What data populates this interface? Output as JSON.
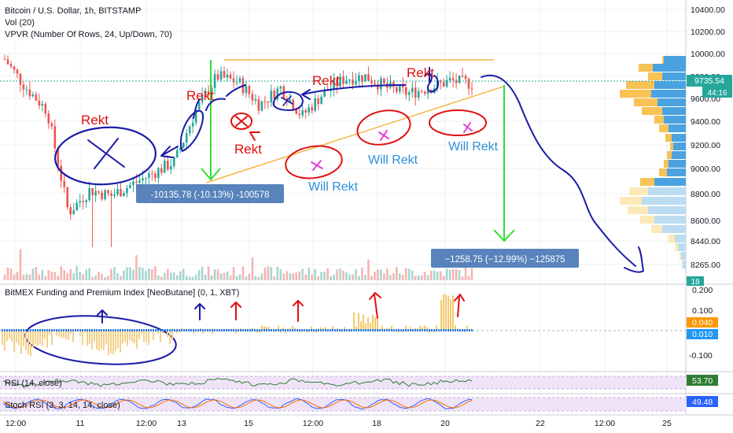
{
  "header": {
    "symbol": "Bitcoin / U.S. Dollar, 1h, BITSTAMP",
    "vol": "Vol (20)",
    "vpvr": "VPVR (Number Of Rows, 24, Up/Down, 70)"
  },
  "price_axis": {
    "ticks": [
      "10400.00",
      "10200.00",
      "10000.00",
      "9800.00",
      "9600.00",
      "9400.00",
      "9200.00",
      "9000.00",
      "8800.00",
      "8600.00",
      "8440.00",
      "8265.00"
    ],
    "last_price": "9735.54",
    "countdown": "44:16",
    "vol_badge": "18"
  },
  "time_axis": {
    "ticks": [
      "12:00",
      "11",
      "12:00",
      "13",
      "15",
      "12:00",
      "18",
      "20",
      "22",
      "12:00",
      "25"
    ]
  },
  "indicators": {
    "bitmex": {
      "label": "BitMEX Funding and Premium Index [NeoButane] (0, 1, XBT)",
      "ticks": [
        "0.200",
        "0.100",
        "0.040",
        "0.010",
        "-0.100"
      ],
      "badge1": "0.040",
      "badge2": "0.010"
    },
    "rsi": {
      "label": "RSI (14, close)",
      "value": "53.70"
    },
    "stoch": {
      "label": "Stoch RSI (3, 3, 14, 14, close)",
      "value": "49.48"
    }
  },
  "annotations": {
    "measure_left": "-10135.78 (-10.13%) -100578",
    "measure_right": "−1258.75 (−12.99%) −125875",
    "rekt": [
      "Rekt",
      "Rekt",
      "Rekt",
      "Rekt",
      "Rekt"
    ],
    "will_rekt": [
      "Will Rekt",
      "Will Rekt",
      "Will Rekt"
    ]
  },
  "colors": {
    "up": "#26a69a",
    "down": "#ef5350",
    "accent": "#2962ff",
    "ink_blue": "#1a1aa8",
    "ink_red": "#e01010",
    "measure_green": "#32dd32",
    "badge_blue": "#2196f3",
    "badge_orange": "#ff9800"
  },
  "chart_data": {
    "type": "candlestick",
    "symbol": "Bitcoin / U.S. Dollar, 1h, BITSTAMP",
    "x_ticks": [
      "12:00",
      "11",
      "12:00",
      "13",
      "15",
      "12:00",
      "18",
      "20",
      "22",
      "12:00",
      "25"
    ],
    "y_ticks": [
      10400,
      10200,
      10000,
      9800,
      9600,
      9400,
      9200,
      9000,
      8800,
      8600,
      8440,
      8265
    ],
    "approx_close_path": [
      {
        "t": "10 06:00",
        "p": 9950
      },
      {
        "t": "10 12:00",
        "p": 9700
      },
      {
        "t": "10 18:00",
        "p": 9500
      },
      {
        "t": "11 00:00",
        "p": 8600
      },
      {
        "t": "11 12:00",
        "p": 8800
      },
      {
        "t": "12 00:00",
        "p": 8750
      },
      {
        "t": "12 12:00",
        "p": 8850
      },
      {
        "t": "13 00:00",
        "p": 8950
      },
      {
        "t": "13 12:00",
        "p": 9050
      },
      {
        "t": "14 00:00",
        "p": 9500
      },
      {
        "t": "14 12:00",
        "p": 9800
      },
      {
        "t": "15 00:00",
        "p": 9750
      },
      {
        "t": "15 12:00",
        "p": 9550
      },
      {
        "t": "16 00:00",
        "p": 9700
      },
      {
        "t": "16 12:00",
        "p": 9450
      },
      {
        "t": "17 00:00",
        "p": 9650
      },
      {
        "t": "17 12:00",
        "p": 9780
      },
      {
        "t": "18 00:00",
        "p": 9800
      },
      {
        "t": "18 12:00",
        "p": 9700
      },
      {
        "t": "19 00:00",
        "p": 9650
      },
      {
        "t": "19 12:00",
        "p": 9700
      },
      {
        "t": "20 00:00",
        "p": 9760
      },
      {
        "t": "20 06:00",
        "p": 9735.54
      }
    ],
    "last": 9735.54
  }
}
